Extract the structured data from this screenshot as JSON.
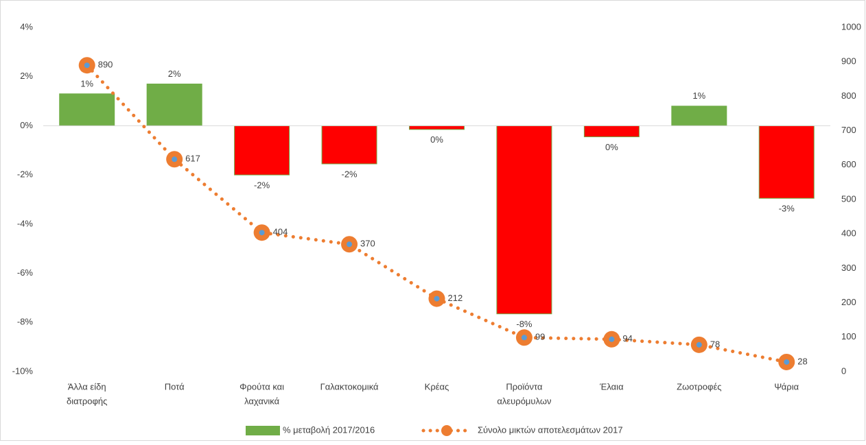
{
  "chart_data": {
    "type": "bar",
    "categories": [
      [
        "Άλλα είδη",
        "διατροφής"
      ],
      [
        "Ποτά"
      ],
      [
        "Φρούτα και",
        "λαχανικά"
      ],
      [
        "Γαλακτοκομικά"
      ],
      [
        "Κρέας"
      ],
      [
        "Προϊόντα",
        "αλευρόμυλων"
      ],
      [
        "Έλαια"
      ],
      [
        "Ζωοτροφές"
      ],
      [
        "Ψάρια"
      ]
    ],
    "series": [
      {
        "name": "% μεταβολή 2017/2016",
        "type": "bar",
        "axis": "left",
        "color": "#70ad47",
        "negative_color": "#ff0000",
        "values": [
          1.3,
          1.7,
          -2.0,
          -1.55,
          -0.15,
          -7.65,
          -0.45,
          0.8,
          -2.95
        ],
        "labels": [
          "1%",
          "2%",
          "-2%",
          "-2%",
          "0%",
          "-8%",
          "0%",
          "1%",
          "-3%"
        ]
      },
      {
        "name": "Σύνολο μικτών αποτελεσμάτων 2017",
        "type": "line",
        "style": "dotted",
        "axis": "right",
        "color": "#ed7d31",
        "marker_inner_color": "#5b9bd5",
        "values": [
          890,
          617,
          404,
          370,
          212,
          99,
          94,
          78,
          28
        ],
        "labels": [
          "890",
          "617",
          "404",
          "370",
          "212",
          "99",
          "94",
          "78",
          "28"
        ]
      }
    ],
    "y_left": {
      "min": -10,
      "max": 4,
      "step": 2,
      "ticks": [
        "4%",
        "2%",
        "0%",
        "-2%",
        "-4%",
        "-6%",
        "-8%",
        "-10%"
      ]
    },
    "y_right": {
      "min": 0,
      "max": 1000,
      "step": 100,
      "ticks": [
        "1000",
        "900",
        "800",
        "700",
        "600",
        "500",
        "400",
        "300",
        "200",
        "100",
        "0"
      ]
    },
    "legend": {
      "position": "bottom"
    },
    "grid": false
  }
}
